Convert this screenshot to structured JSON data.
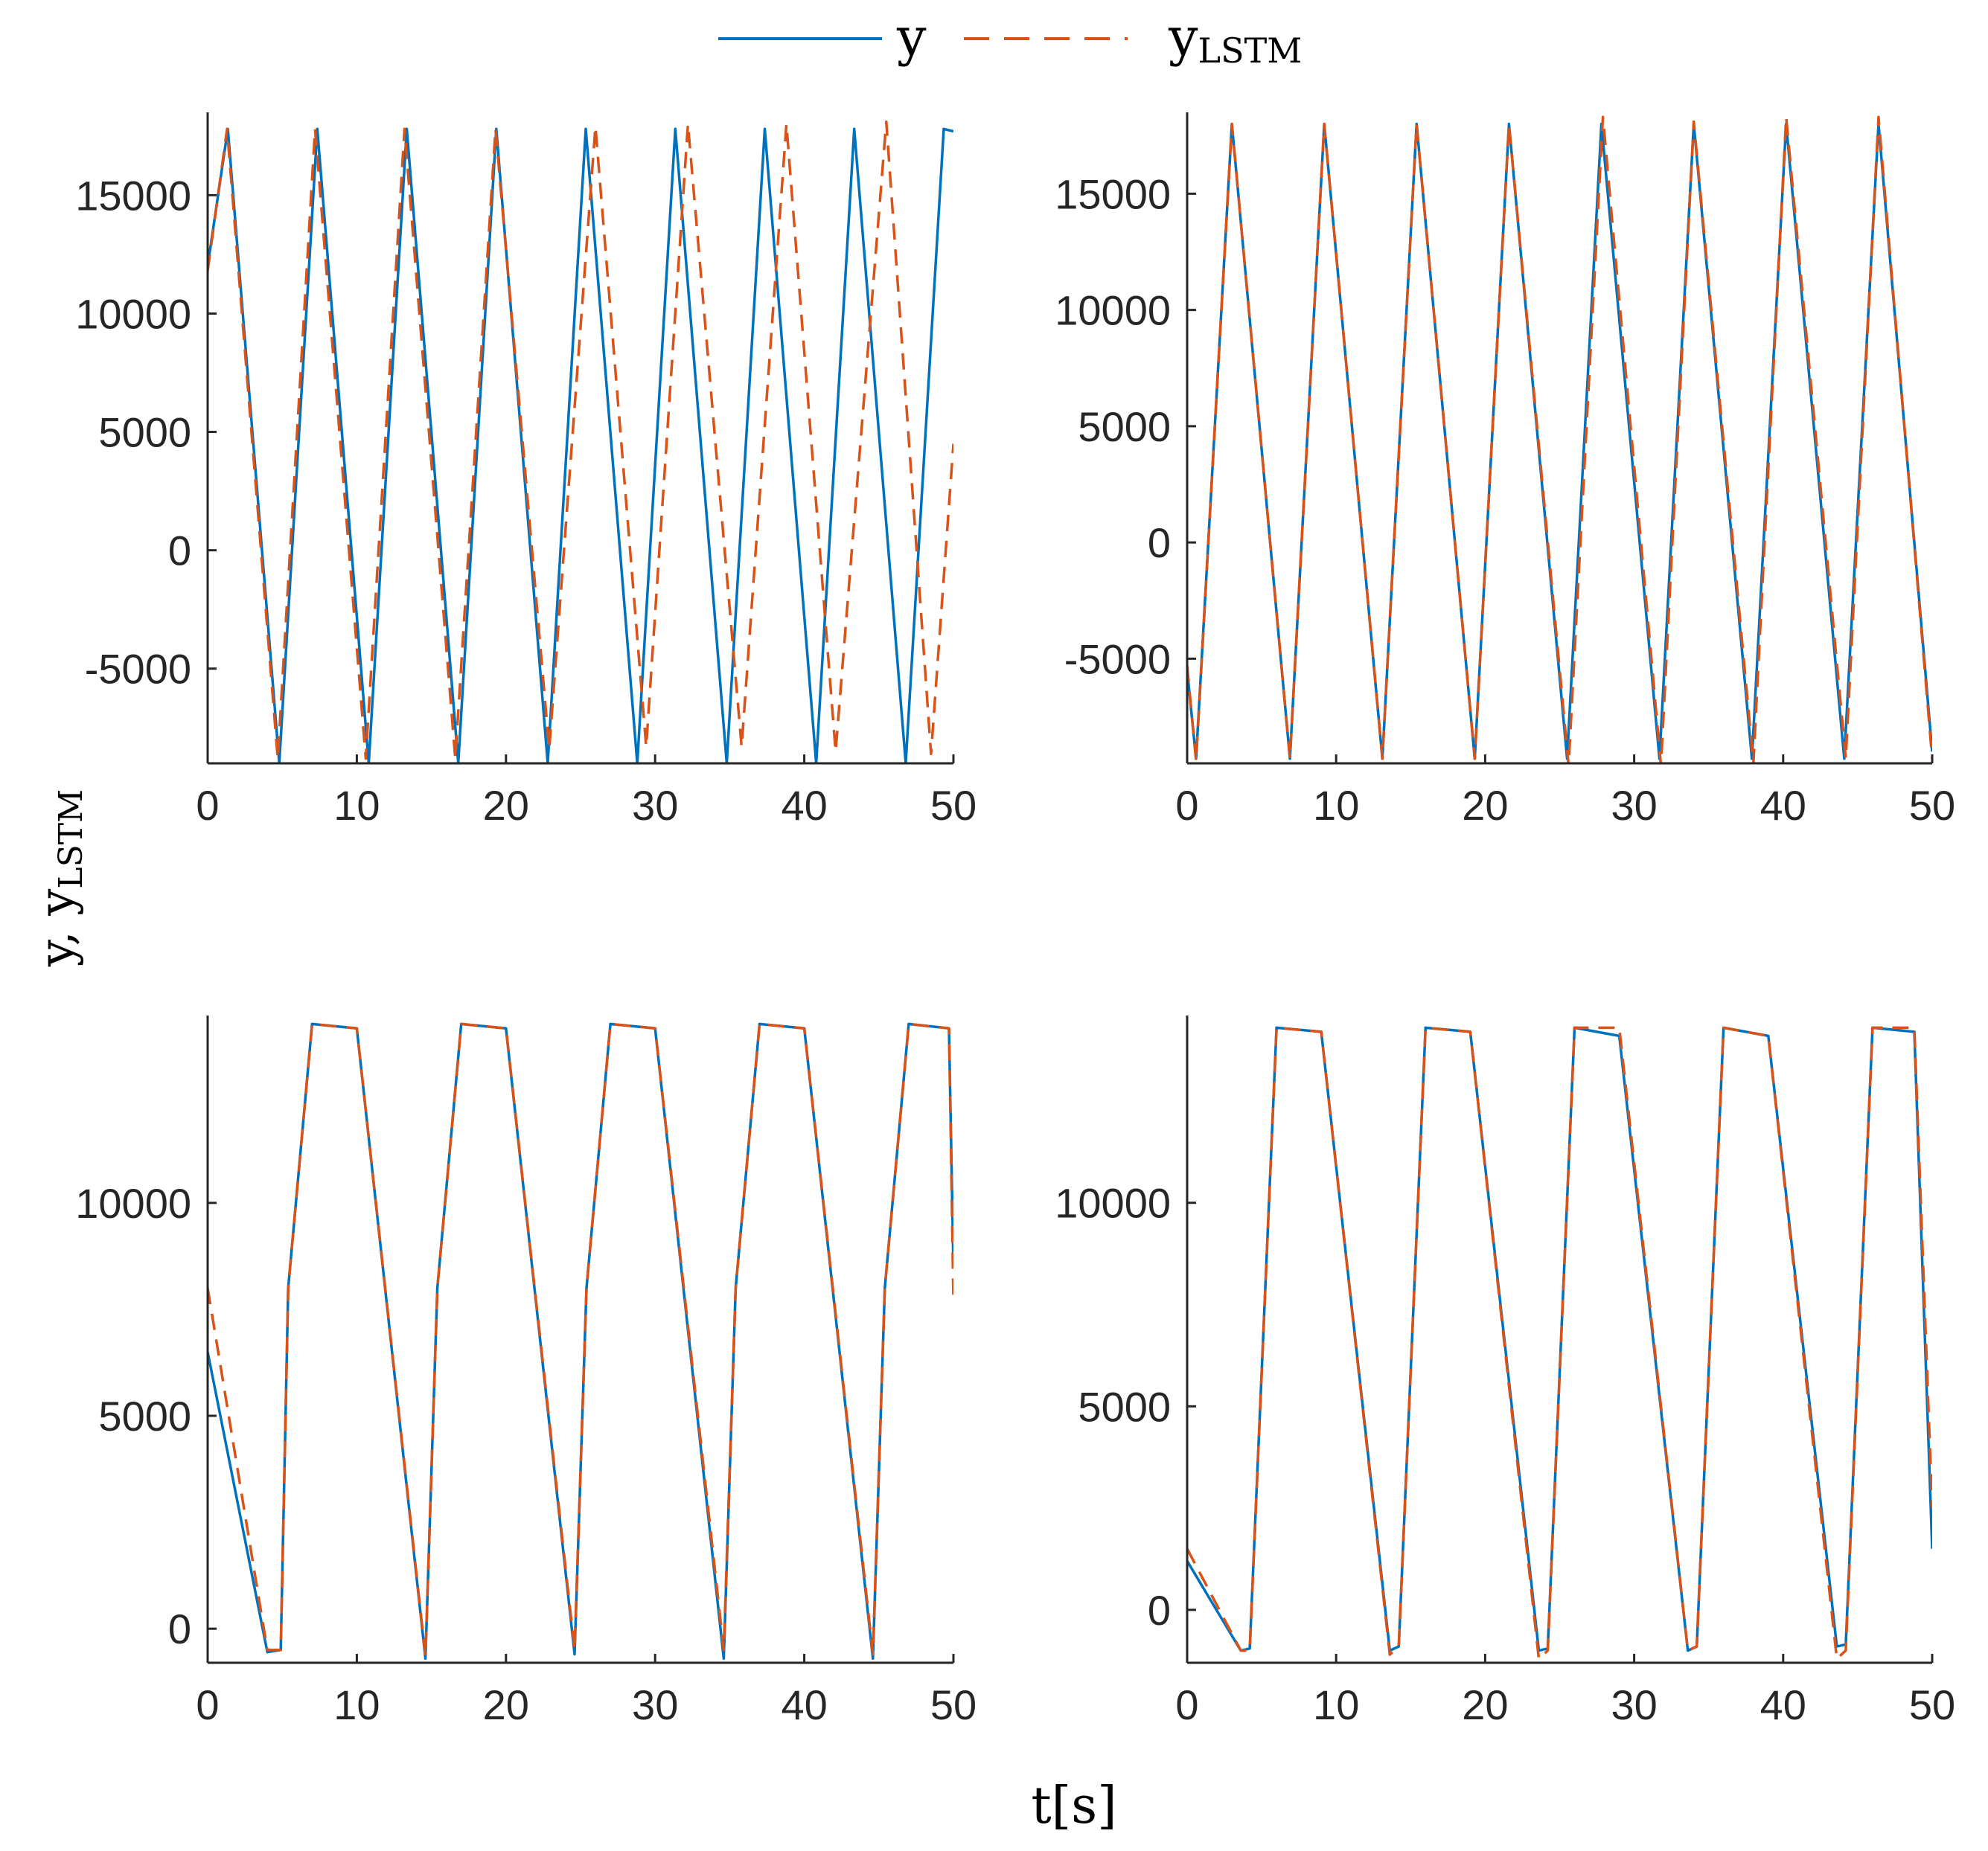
{
  "legend": {
    "position": "top-center",
    "entries": [
      {
        "name": "y",
        "sub": "",
        "color": "#0072BD",
        "style": "solid"
      },
      {
        "name": "y",
        "sub": "LSTM",
        "color": "#D95319",
        "style": "dashed"
      }
    ]
  },
  "shared_labels": {
    "ylabel_main": "y, y",
    "ylabel_sub": "LSTM",
    "xlabel": "t[s]"
  },
  "chart_data": [
    {
      "type": "line",
      "position": "top-left",
      "xlim": [
        0,
        50
      ],
      "ylim": [
        -9000,
        18500
      ],
      "xticks": [
        0,
        10,
        20,
        30,
        40,
        50
      ],
      "yticks": [
        -5000,
        0,
        5000,
        10000,
        15000
      ],
      "grid": false,
      "series": [
        {
          "name": "y",
          "color": "#0072BD",
          "style": "solid",
          "x": [
            0,
            1.35,
            4.8,
            7.35,
            10.8,
            13.35,
            16.8,
            19.35,
            22.8,
            25.35,
            28.8,
            31.35,
            34.8,
            37.35,
            40.8,
            43.35,
            46.8,
            49.35,
            50
          ],
          "y": [
            12000,
            17800,
            -9000,
            17800,
            -9000,
            17800,
            -9000,
            17800,
            -9000,
            17800,
            -9000,
            17800,
            -9000,
            17800,
            -9000,
            17800,
            -9000,
            17800,
            17700
          ]
        },
        {
          "name": "yLSTM",
          "color": "#D95319",
          "style": "dashed",
          "x": [
            0,
            1.3,
            4.7,
            7.2,
            10.6,
            13.2,
            16.6,
            19.3,
            22.9,
            26,
            29.4,
            32.2,
            35.8,
            38.8,
            42.1,
            45.5,
            48.5,
            50
          ],
          "y": [
            11800,
            17800,
            -8800,
            17800,
            -8800,
            17800,
            -8800,
            17800,
            -8400,
            17900,
            -8300,
            18000,
            -8300,
            18000,
            -8500,
            18100,
            -8600,
            4500
          ]
        }
      ]
    },
    {
      "type": "line",
      "position": "top-right",
      "xlim": [
        0,
        50
      ],
      "ylim": [
        -9500,
        18500
      ],
      "xticks": [
        0,
        10,
        20,
        30,
        40,
        50
      ],
      "yticks": [
        -5000,
        0,
        5000,
        10000,
        15000
      ],
      "grid": false,
      "series": [
        {
          "name": "y",
          "color": "#0072BD",
          "style": "solid",
          "x": [
            0,
            0.6,
            3.0,
            6.9,
            9.2,
            13.1,
            15.4,
            19.3,
            21.6,
            25.5,
            27.8,
            31.7,
            34.0,
            37.9,
            40.2,
            44.1,
            46.4,
            50
          ],
          "y": [
            -5500,
            -9300,
            18000,
            -9300,
            18000,
            -9300,
            18000,
            -9300,
            18000,
            -9300,
            18000,
            -9300,
            18000,
            -9300,
            18000,
            -9300,
            18000,
            -9000
          ]
        },
        {
          "name": "yLSTM",
          "color": "#D95319",
          "style": "dashed",
          "x": [
            0,
            0.6,
            3.0,
            6.9,
            9.2,
            13.1,
            15.4,
            19.3,
            21.6,
            25.6,
            27.9,
            31.8,
            34.0,
            38.0,
            40.2,
            44.2,
            46.4,
            50
          ],
          "y": [
            -5300,
            -9400,
            18000,
            -9300,
            18000,
            -9300,
            18000,
            -9300,
            18000,
            -9600,
            18300,
            -9600,
            18100,
            -9500,
            18300,
            -9300,
            18300,
            -9300
          ]
        }
      ]
    },
    {
      "type": "line",
      "position": "bottom-left",
      "xlim": [
        0,
        50
      ],
      "ylim": [
        -800,
        14400
      ],
      "xticks": [
        0,
        10,
        20,
        30,
        40,
        50
      ],
      "yticks": [
        0,
        5000,
        10000
      ],
      "grid": false,
      "series": [
        {
          "name": "y",
          "color": "#0072BD",
          "style": "solid",
          "x": [
            0,
            4,
            4.9,
            5.4,
            7,
            10,
            14.6,
            15.4,
            17,
            20,
            24.6,
            25.4,
            27,
            30,
            34.6,
            35.4,
            37,
            40,
            44.6,
            45.4,
            47,
            49.7,
            50
          ],
          "y": [
            6500,
            -550,
            -500,
            8000,
            14200,
            14100,
            -700,
            8000,
            14200,
            14100,
            -600,
            8000,
            14200,
            14100,
            -700,
            8000,
            14200,
            14100,
            -700,
            8000,
            14200,
            14100,
            8500
          ]
        },
        {
          "name": "yLSTM",
          "color": "#D95319",
          "style": "dashed",
          "x": [
            0,
            4,
            4.9,
            5.4,
            7,
            10,
            14.6,
            15.4,
            17,
            20,
            24.6,
            25.4,
            27,
            30,
            34.6,
            35.4,
            37,
            40,
            44.6,
            45.4,
            47,
            49.7,
            50
          ],
          "y": [
            8000,
            -500,
            -500,
            8000,
            14200,
            14100,
            -650,
            8000,
            14200,
            14100,
            -500,
            8000,
            14200,
            14100,
            -500,
            8000,
            14200,
            14100,
            -600,
            8000,
            14200,
            14100,
            7700
          ]
        }
      ]
    },
    {
      "type": "line",
      "position": "bottom-right",
      "xlim": [
        0,
        50
      ],
      "ylim": [
        -1300,
        14600
      ],
      "xticks": [
        0,
        10,
        20,
        30,
        40,
        50
      ],
      "yticks": [
        0,
        5000,
        10000
      ],
      "grid": false,
      "series": [
        {
          "name": "y",
          "color": "#0072BD",
          "style": "solid",
          "x": [
            0,
            3.6,
            4.2,
            6,
            9,
            13.6,
            14.2,
            16,
            19,
            23.6,
            24.2,
            26,
            29,
            33.6,
            34.2,
            36,
            39,
            43.6,
            44.2,
            46,
            48.8,
            50
          ],
          "y": [
            1200,
            -1000,
            -950,
            14300,
            14200,
            -1000,
            -900,
            14300,
            14200,
            -1000,
            -950,
            14300,
            14100,
            -1000,
            -900,
            14300,
            14100,
            -900,
            -850,
            14300,
            14200,
            1500
          ]
        },
        {
          "name": "yLSTM",
          "color": "#D95319",
          "style": "dashed",
          "x": [
            0,
            3.6,
            4.2,
            6,
            9,
            13.6,
            14.2,
            16,
            19,
            23.6,
            24.2,
            26,
            29,
            33.6,
            34.2,
            36,
            39,
            43.6,
            44.2,
            46,
            48.8,
            50
          ],
          "y": [
            1500,
            -1000,
            -1000,
            14300,
            14200,
            -1100,
            -900,
            14300,
            14200,
            -1200,
            -1000,
            14300,
            14300,
            -1000,
            -900,
            14300,
            14100,
            -1200,
            -1000,
            14300,
            14300,
            2500
          ]
        }
      ]
    }
  ]
}
